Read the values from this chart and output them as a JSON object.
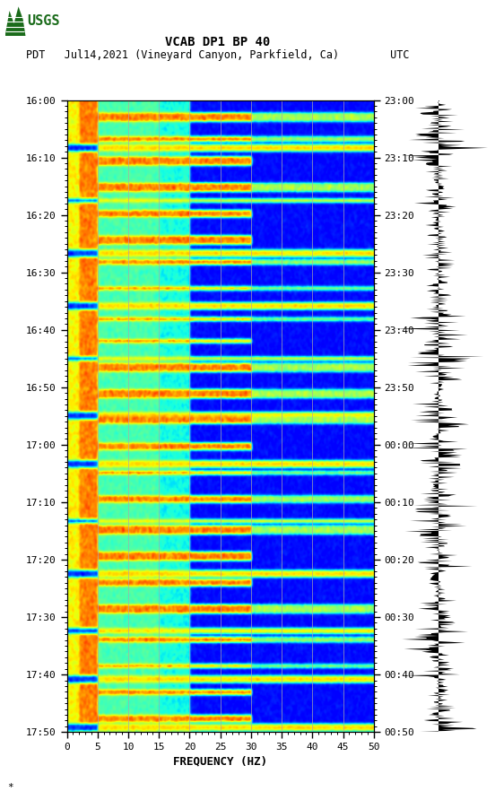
{
  "title_line1": "VCAB DP1 BP 40",
  "title_line2": "PDT   Jul14,2021 (Vineyard Canyon, Parkfield, Ca)        UTC",
  "xlabel": "FREQUENCY (HZ)",
  "freq_min": 0,
  "freq_max": 50,
  "freq_ticks": [
    0,
    5,
    10,
    15,
    20,
    25,
    30,
    35,
    40,
    45,
    50
  ],
  "time_labels_left": [
    "16:00",
    "16:10",
    "16:20",
    "16:30",
    "16:40",
    "16:50",
    "17:00",
    "17:10",
    "17:20",
    "17:30",
    "17:40",
    "17:50"
  ],
  "time_labels_right": [
    "23:00",
    "23:10",
    "23:20",
    "23:30",
    "23:40",
    "23:50",
    "00:00",
    "00:10",
    "00:20",
    "00:30",
    "00:40",
    "00:50"
  ],
  "n_time_steps": 720,
  "n_freq_bins": 500,
  "bg_color": "white",
  "spectrogram_colormap": "jet",
  "vertical_line_freqs": [
    5,
    10,
    15,
    20,
    25,
    30,
    35,
    40,
    45
  ],
  "usgs_logo_color": "#1a6b1a",
  "grid_line_color": "#888888",
  "event_line_color": "#8B0000"
}
